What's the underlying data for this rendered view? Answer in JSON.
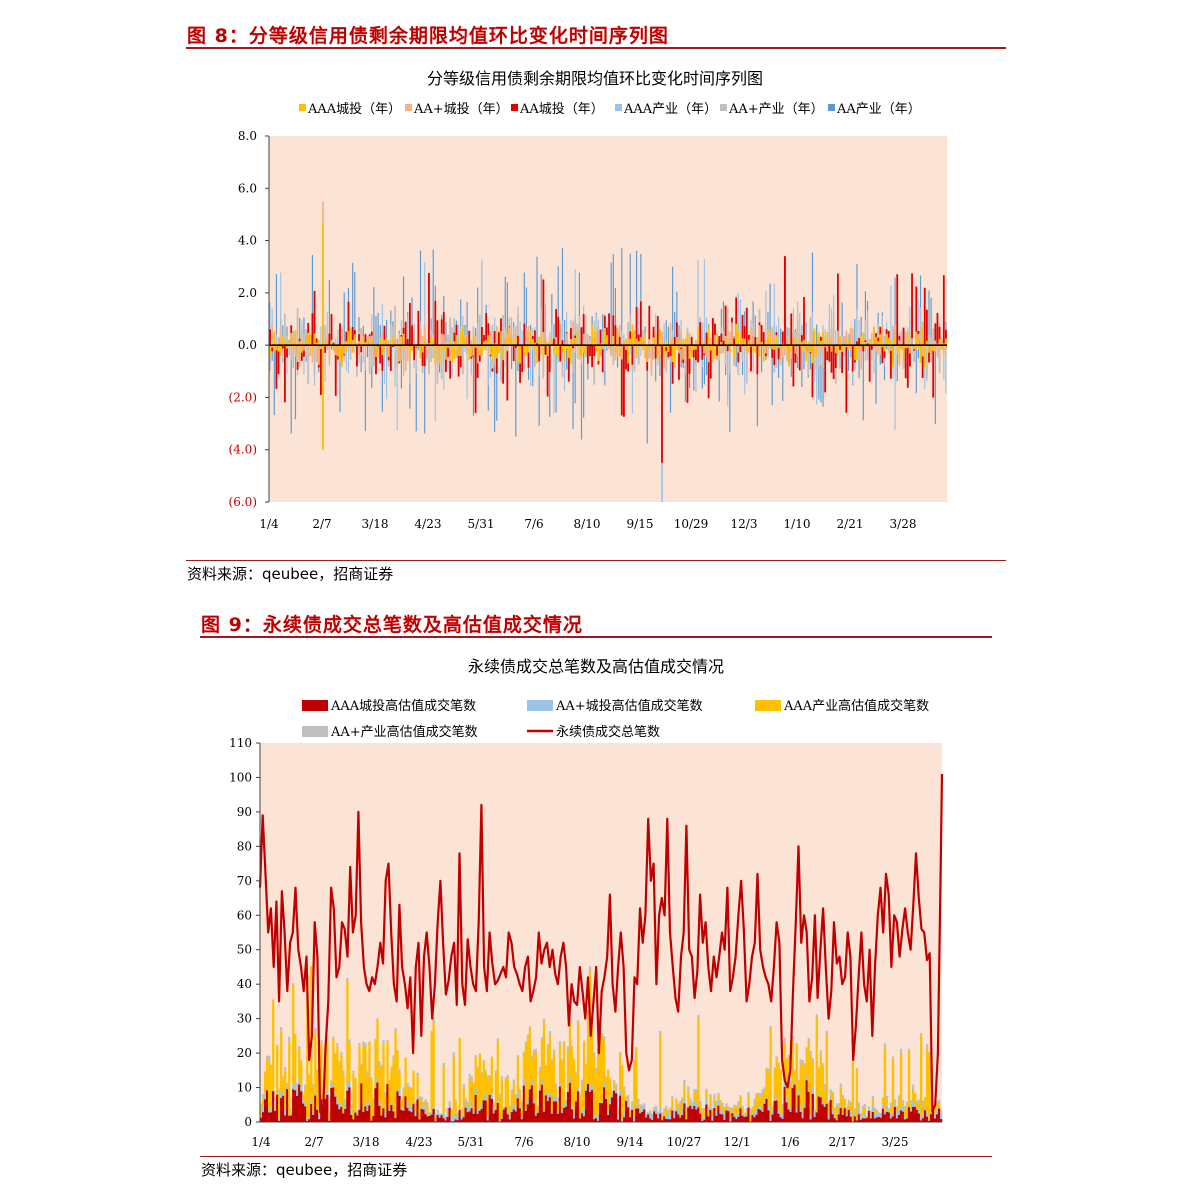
{
  "figures": [
    {
      "heading": "图 8：分等级信用债剩余期限均值环比变化时间序列图",
      "source": "资料来源：qeubee，招商证券"
    },
    {
      "heading": "图 9：永续债成交总笔数及高估值成交情况",
      "source": "资料来源：qeubee，招商证券"
    }
  ],
  "colors": {
    "heading": "#C00000",
    "rule": "#9B1C1C",
    "plot_bg": "#FBE4D5",
    "aaa_city": "#FFC000",
    "aa_plus_city": "#F4B183",
    "aa_city": "#E00000",
    "aaa_ind": "#9DC3E6",
    "aa_plus_ind": "#BFBFBF",
    "aa_ind": "#5B9BD5",
    "total_line": "#C00000",
    "high_city": "#C00000"
  },
  "chart_data": [
    {
      "type": "bar",
      "title": "分等级信用债剩余期限均值环比变化时间序列图",
      "xlabel": "",
      "ylabel": "",
      "ylim": [
        -6,
        8
      ],
      "yticks": [
        "8.0",
        "6.0",
        "4.0",
        "2.0",
        "0.0",
        "(2.0)",
        "(4.0)",
        "(6.0)"
      ],
      "ytick_values": [
        8,
        6,
        4,
        2,
        0,
        -2,
        -4,
        -6
      ],
      "x_tick_labels": [
        "1/4",
        "2/7",
        "3/18",
        "4/23",
        "5/31",
        "7/6",
        "8/10",
        "9/15",
        "10/29",
        "12/3",
        "1/10",
        "2/21",
        "3/28"
      ],
      "legend_position": "top",
      "grid": false,
      "n_points": 320,
      "series": [
        {
          "name": "AAA城投（年）",
          "color": "#FFC000",
          "amp": 0.6
        },
        {
          "name": "AA+城投（年）",
          "color": "#F4B183",
          "amp": 0.7
        },
        {
          "name": "AA城投（年）",
          "color": "#E00000",
          "amp": 1.1
        },
        {
          "name": "AAA产业（年）",
          "color": "#9DC3E6",
          "amp": 1.4
        },
        {
          "name": "AA+产业（年）",
          "color": "#BFBFBF",
          "amp": 1.1
        },
        {
          "name": "AA产业（年）",
          "color": "#5B9BD5",
          "amp": 1.6
        }
      ],
      "peaks": [
        {
          "x_index": 25,
          "series": "AA+城投（年）",
          "value": 5.5
        },
        {
          "x_index": 25,
          "series": "AAA城投（年）",
          "value": 4.7
        },
        {
          "x_index": 25,
          "series": "AAA城投（年）",
          "value": -4.0
        },
        {
          "x_index": 185,
          "series": "AAA产业（年）",
          "value": -6.0
        },
        {
          "x_index": 185,
          "series": "AA城投（年）",
          "value": -4.5
        },
        {
          "x_index": 243,
          "series": "AA城投（年）",
          "value": 3.4
        }
      ]
    },
    {
      "type": "bar",
      "title": "永续债成交总笔数及高估值成交情况",
      "xlabel": "",
      "ylabel": "",
      "ylim": [
        0,
        110
      ],
      "yticks": [
        0,
        10,
        20,
        30,
        40,
        50,
        60,
        70,
        80,
        90,
        100,
        110
      ],
      "x_tick_labels": [
        "1/4",
        "2/7",
        "3/18",
        "4/23",
        "5/31",
        "7/6",
        "8/10",
        "9/14",
        "10/27",
        "12/1",
        "1/6",
        "2/17",
        "3/25"
      ],
      "legend_position": "top",
      "grid": false,
      "series": [
        {
          "name": "AAA城投高估值成交笔数",
          "kind": "bar",
          "color": "#C00000"
        },
        {
          "name": "AA+城投高估值成交笔数",
          "kind": "bar",
          "color": "#9DC3E6"
        },
        {
          "name": "AAA产业高估值成交笔数",
          "kind": "bar",
          "color": "#FFC000"
        },
        {
          "name": "AA+产业高估值成交笔数",
          "kind": "bar",
          "color": "#BFBFBF"
        },
        {
          "name": "永续债成交总笔数",
          "kind": "line",
          "color": "#C00000"
        }
      ],
      "total_line_keypoints": [
        [
          0,
          68
        ],
        [
          2,
          89
        ],
        [
          4,
          72
        ],
        [
          6,
          55
        ],
        [
          8,
          62
        ],
        [
          10,
          45
        ],
        [
          12,
          64
        ],
        [
          14,
          35
        ],
        [
          16,
          67
        ],
        [
          18,
          55
        ],
        [
          20,
          38
        ],
        [
          22,
          52
        ],
        [
          24,
          55
        ],
        [
          26,
          68
        ],
        [
          28,
          50
        ],
        [
          30,
          45
        ],
        [
          32,
          38
        ],
        [
          34,
          48
        ],
        [
          36,
          18
        ],
        [
          38,
          25
        ],
        [
          40,
          58
        ],
        [
          42,
          48
        ],
        [
          44,
          3
        ],
        [
          46,
          2
        ],
        [
          48,
          22
        ],
        [
          50,
          35
        ],
        [
          52,
          68
        ],
        [
          54,
          62
        ],
        [
          56,
          42
        ],
        [
          58,
          45
        ],
        [
          60,
          58
        ],
        [
          62,
          56
        ],
        [
          64,
          48
        ],
        [
          66,
          74
        ],
        [
          68,
          55
        ],
        [
          70,
          60
        ],
        [
          72,
          90
        ],
        [
          74,
          58
        ],
        [
          76,
          45
        ],
        [
          78,
          40
        ],
        [
          80,
          38
        ],
        [
          82,
          42
        ],
        [
          84,
          40
        ],
        [
          86,
          45
        ],
        [
          88,
          52
        ],
        [
          90,
          46
        ],
        [
          92,
          70
        ],
        [
          94,
          75
        ],
        [
          96,
          55
        ],
        [
          98,
          40
        ],
        [
          100,
          35
        ],
        [
          102,
          63
        ],
        [
          104,
          45
        ],
        [
          106,
          40
        ],
        [
          108,
          33
        ],
        [
          110,
          42
        ],
        [
          112,
          20
        ],
        [
          114,
          45
        ],
        [
          116,
          52
        ],
        [
          118,
          25
        ],
        [
          120,
          48
        ],
        [
          122,
          55
        ],
        [
          124,
          45
        ],
        [
          126,
          30
        ],
        [
          128,
          40
        ],
        [
          130,
          58
        ],
        [
          132,
          70
        ],
        [
          134,
          52
        ],
        [
          136,
          37
        ],
        [
          138,
          41
        ],
        [
          140,
          48
        ],
        [
          142,
          52
        ],
        [
          144,
          34
        ],
        [
          146,
          78
        ],
        [
          148,
          40
        ],
        [
          150,
          34
        ],
        [
          152,
          53
        ],
        [
          154,
          45
        ],
        [
          156,
          40
        ],
        [
          158,
          38
        ],
        [
          160,
          58
        ],
        [
          162,
          92
        ],
        [
          164,
          45
        ],
        [
          166,
          38
        ],
        [
          168,
          55
        ],
        [
          170,
          46
        ],
        [
          172,
          40
        ],
        [
          174,
          41
        ],
        [
          176,
          43
        ],
        [
          178,
          45
        ],
        [
          180,
          42
        ],
        [
          182,
          55
        ],
        [
          184,
          52
        ],
        [
          186,
          45
        ],
        [
          188,
          43
        ],
        [
          190,
          40
        ],
        [
          192,
          38
        ],
        [
          194,
          45
        ],
        [
          196,
          48
        ],
        [
          198,
          35
        ],
        [
          200,
          38
        ],
        [
          202,
          42
        ],
        [
          204,
          55
        ],
        [
          206,
          46
        ],
        [
          208,
          50
        ],
        [
          210,
          52
        ],
        [
          212,
          45
        ],
        [
          214,
          50
        ],
        [
          216,
          43
        ],
        [
          218,
          40
        ],
        [
          220,
          48
        ],
        [
          222,
          52
        ],
        [
          224,
          45
        ],
        [
          226,
          28
        ],
        [
          228,
          40
        ],
        [
          230,
          35
        ],
        [
          232,
          34
        ],
        [
          234,
          45
        ],
        [
          236,
          38
        ],
        [
          238,
          30
        ],
        [
          240,
          42
        ],
        [
          242,
          25
        ],
        [
          244,
          35
        ],
        [
          246,
          45
        ],
        [
          248,
          20
        ],
        [
          250,
          38
        ],
        [
          252,
          42
        ],
        [
          254,
          48
        ],
        [
          256,
          66
        ],
        [
          258,
          40
        ],
        [
          260,
          32
        ],
        [
          262,
          45
        ],
        [
          264,
          55
        ],
        [
          266,
          45
        ],
        [
          268,
          20
        ],
        [
          270,
          15
        ],
        [
          272,
          18
        ],
        [
          274,
          42
        ],
        [
          276,
          40
        ],
        [
          278,
          62
        ],
        [
          280,
          52
        ],
        [
          282,
          60
        ],
        [
          284,
          88
        ],
        [
          286,
          70
        ],
        [
          288,
          75
        ],
        [
          290,
          40
        ],
        [
          292,
          60
        ],
        [
          294,
          65
        ],
        [
          296,
          60
        ],
        [
          298,
          88
        ],
        [
          300,
          55
        ],
        [
          302,
          45
        ],
        [
          304,
          36
        ],
        [
          306,
          32
        ],
        [
          308,
          48
        ],
        [
          310,
          55
        ],
        [
          312,
          86
        ],
        [
          314,
          50
        ],
        [
          316,
          48
        ],
        [
          318,
          36
        ],
        [
          320,
          44
        ],
        [
          322,
          66
        ],
        [
          324,
          52
        ],
        [
          326,
          58
        ],
        [
          328,
          45
        ],
        [
          330,
          38
        ],
        [
          332,
          48
        ],
        [
          334,
          42
        ],
        [
          336,
          48
        ],
        [
          338,
          55
        ],
        [
          340,
          50
        ],
        [
          342,
          68
        ],
        [
          344,
          38
        ],
        [
          346,
          42
        ],
        [
          348,
          48
        ],
        [
          350,
          60
        ],
        [
          352,
          70
        ],
        [
          354,
          56
        ],
        [
          356,
          35
        ],
        [
          358,
          40
        ],
        [
          360,
          48
        ],
        [
          362,
          52
        ],
        [
          364,
          72
        ],
        [
          366,
          50
        ],
        [
          368,
          45
        ],
        [
          370,
          42
        ],
        [
          372,
          40
        ],
        [
          374,
          35
        ],
        [
          376,
          45
        ],
        [
          378,
          58
        ],
        [
          380,
          52
        ],
        [
          382,
          18
        ],
        [
          384,
          12
        ],
        [
          386,
          10
        ],
        [
          388,
          15
        ],
        [
          390,
          38
        ],
        [
          392,
          58
        ],
        [
          394,
          80
        ],
        [
          396,
          52
        ],
        [
          398,
          60
        ],
        [
          400,
          55
        ],
        [
          402,
          35
        ],
        [
          404,
          42
        ],
        [
          406,
          60
        ],
        [
          408,
          36
        ],
        [
          410,
          50
        ],
        [
          412,
          62
        ],
        [
          414,
          45
        ],
        [
          416,
          30
        ],
        [
          418,
          38
        ],
        [
          420,
          58
        ],
        [
          422,
          46
        ],
        [
          424,
          48
        ],
        [
          426,
          40
        ],
        [
          428,
          42
        ],
        [
          430,
          55
        ],
        [
          432,
          48
        ],
        [
          434,
          18
        ],
        [
          436,
          28
        ],
        [
          438,
          42
        ],
        [
          440,
          55
        ],
        [
          442,
          40
        ],
        [
          444,
          35
        ],
        [
          446,
          50
        ],
        [
          448,
          25
        ],
        [
          450,
          45
        ],
        [
          452,
          60
        ],
        [
          454,
          68
        ],
        [
          456,
          55
        ],
        [
          458,
          72
        ],
        [
          460,
          66
        ],
        [
          462,
          45
        ],
        [
          464,
          60
        ],
        [
          466,
          58
        ],
        [
          468,
          48
        ],
        [
          470,
          56
        ],
        [
          472,
          62
        ],
        [
          474,
          55
        ],
        [
          476,
          50
        ],
        [
          478,
          63
        ],
        [
          480,
          78
        ],
        [
          482,
          65
        ],
        [
          484,
          56
        ],
        [
          486,
          55
        ],
        [
          488,
          47
        ],
        [
          490,
          49
        ],
        [
          492,
          3
        ],
        [
          494,
          5
        ],
        [
          496,
          20
        ],
        [
          498,
          72
        ],
        [
          499,
          101
        ]
      ]
    }
  ]
}
